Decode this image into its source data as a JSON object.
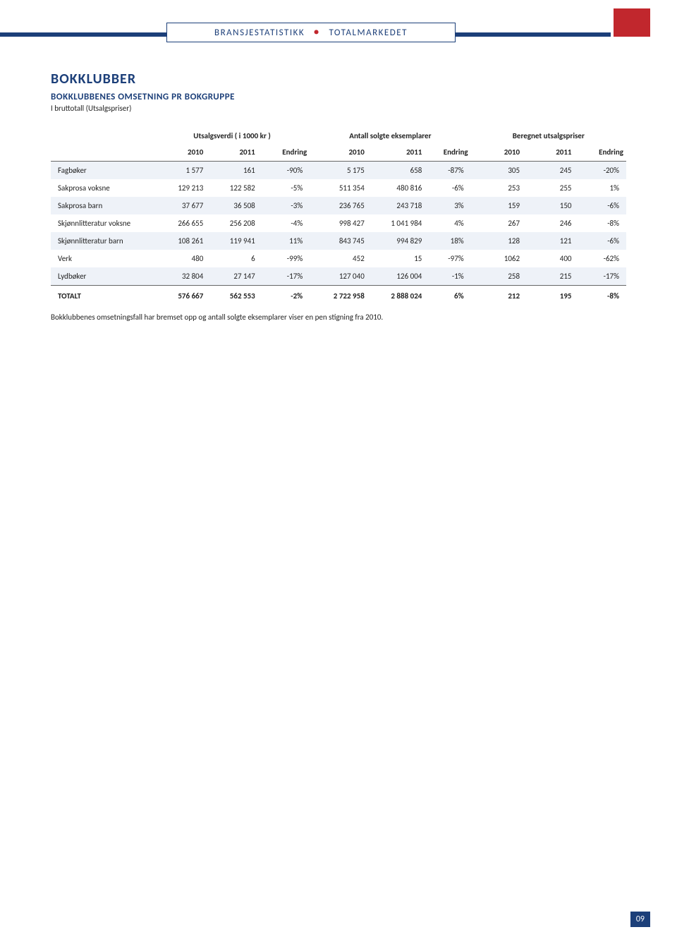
{
  "header": {
    "segment1": "BRANSJESTATISTIKK",
    "segment2": "TOTALMARKEDET"
  },
  "section": {
    "title": "BOKKLUBBER",
    "subtitle": "BOKKLUBBENES OMSETNING PR BOKGRUPPE",
    "note": "I bruttotall (Utsalgspriser)"
  },
  "table": {
    "group_headers": [
      "Utsalgsverdi ( i 1000 kr )",
      "Antall solgte eksemplarer",
      "Beregnet utsalgspriser"
    ],
    "year_headers": [
      "2010",
      "2011",
      "Endring",
      "2010",
      "2011",
      "Endring",
      "2010",
      "2011",
      "Endring"
    ],
    "rows": [
      {
        "label": "Fagbøker",
        "cells": [
          "1 577",
          "161",
          "-90%",
          "5 175",
          "658",
          "-87%",
          "305",
          "245",
          "-20%"
        ],
        "shade": true
      },
      {
        "label": "Sakprosa voksne",
        "cells": [
          "129 213",
          "122 582",
          "-5%",
          "511 354",
          "480 816",
          "-6%",
          "253",
          "255",
          "1%"
        ],
        "shade": false
      },
      {
        "label": "Sakprosa barn",
        "cells": [
          "37 677",
          "36 508",
          "-3%",
          "236 765",
          "243 718",
          "3%",
          "159",
          "150",
          "-6%"
        ],
        "shade": true
      },
      {
        "label": "Skjønnlitteratur voksne",
        "cells": [
          "266 655",
          "256 208",
          "-4%",
          "998 427",
          "1 041 984",
          "4%",
          "267",
          "246",
          "-8%"
        ],
        "shade": false
      },
      {
        "label": "Skjønnlitteratur barn",
        "cells": [
          "108 261",
          "119 941",
          "11%",
          "843 745",
          "994 829",
          "18%",
          "128",
          "121",
          "-6%"
        ],
        "shade": true
      },
      {
        "label": "Verk",
        "cells": [
          "480",
          "6",
          "-99%",
          "452",
          "15",
          "-97%",
          "1062",
          "400",
          "-62%"
        ],
        "shade": false
      },
      {
        "label": "Lydbøker",
        "cells": [
          "32 804",
          "27 147",
          "-17%",
          "127 040",
          "126 004",
          "-1%",
          "258",
          "215",
          "-17%"
        ],
        "shade": true
      }
    ],
    "total": {
      "label": "TOTALT",
      "cells": [
        "576 667",
        "562 553",
        "-2%",
        "2 722 958",
        "2 888 024",
        "6%",
        "212",
        "195",
        "-8%"
      ]
    }
  },
  "caption": "Bokklubbenes omsetningsfall har bremset opp og antall solgte eksemplarer viser en pen stigning fra 2010.",
  "page_number": "09",
  "colors": {
    "brand_blue": "#1c3f79",
    "brand_red": "#c1272d",
    "row_shade": "#eef2f8",
    "text": "#222222",
    "rule": "#666666"
  },
  "col_widths_pct": [
    18,
    9,
    9,
    9,
    10,
    10,
    8,
    9,
    9,
    9
  ]
}
